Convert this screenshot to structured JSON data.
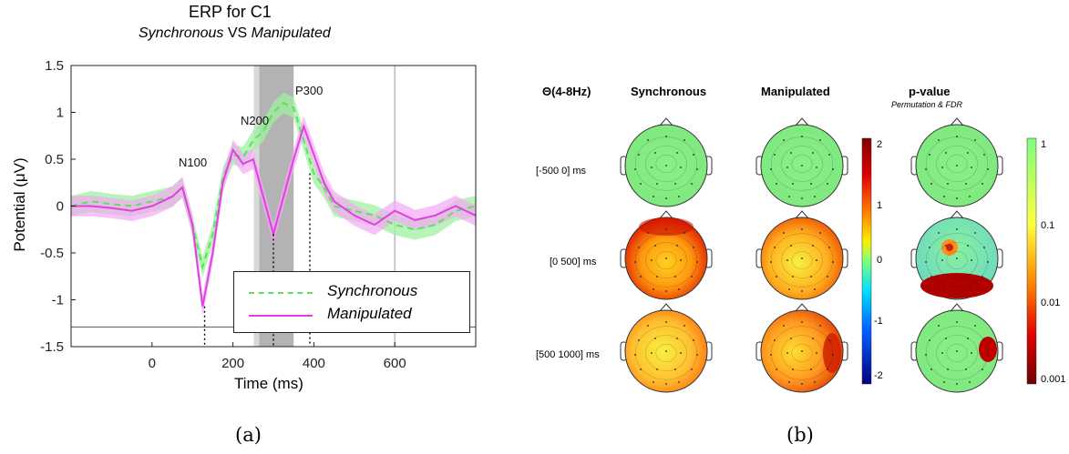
{
  "panel_a": {
    "title": "ERP for C1",
    "subtitle_part1": "Synchronous",
    "subtitle_part2": " VS ",
    "subtitle_part3": "Manipulated",
    "ylabel": "Potential (μV)",
    "xlabel": "Time (ms)",
    "caption": "(a)",
    "peaks": [
      "N100",
      "N200",
      "P300"
    ]
  },
  "panel_b": {
    "caption": "(b)",
    "header_band": "Θ(4-8Hz)",
    "col_headers": [
      "Synchronous",
      "Manipulated",
      "p-value"
    ],
    "pvalue_sub": "Permutation & FDR",
    "row_labels": [
      "[-500 0] ms",
      "[0 500] ms",
      "[500 1000] ms"
    ],
    "colorbar_power_ticks": [
      "2",
      "1",
      "0",
      "-1",
      "-2"
    ],
    "colorbar_p_ticks": [
      "1",
      "0.1",
      "0.01",
      "0.001"
    ]
  },
  "chart_data": {
    "type": "line",
    "title": "ERP for C1",
    "xlabel": "Time (ms)",
    "ylabel": "Potential (μV)",
    "xlim": [
      -200,
      800
    ],
    "ylim": [
      -1.5,
      1.5
    ],
    "xticks": [
      0,
      200,
      400,
      600
    ],
    "yticks": [
      -1.5,
      -1,
      -0.5,
      0,
      0.5,
      1,
      1.5
    ],
    "legend_position": "bottom-right",
    "colors": {
      "synchronous": "#5ee05e",
      "manipulated": "#e23fe2",
      "band_sync": "#9ff09f",
      "band_manip": "#f4a8f4",
      "shade": "#9a9a9a"
    },
    "x": [
      -200,
      -150,
      -100,
      -50,
      0,
      50,
      75,
      100,
      125,
      150,
      175,
      200,
      225,
      250,
      275,
      300,
      325,
      350,
      375,
      400,
      425,
      450,
      500,
      550,
      600,
      650,
      700,
      750,
      800
    ],
    "series": [
      {
        "name": "Synchronous",
        "values": [
          0.0,
          0.05,
          0.02,
          0.0,
          0.05,
          0.1,
          0.2,
          -0.2,
          -0.65,
          -0.3,
          0.3,
          0.55,
          0.52,
          0.7,
          0.8,
          1.0,
          1.1,
          1.05,
          0.7,
          0.35,
          0.2,
          0.0,
          -0.05,
          -0.1,
          -0.2,
          -0.25,
          -0.2,
          -0.05,
          0.0
        ]
      },
      {
        "name": "Manipulated",
        "values": [
          0.0,
          0.0,
          -0.02,
          -0.05,
          0.0,
          0.1,
          0.2,
          -0.2,
          -1.07,
          -0.5,
          0.25,
          0.6,
          0.45,
          0.5,
          0.1,
          -0.3,
          0.1,
          0.5,
          0.85,
          0.55,
          0.25,
          0.05,
          -0.1,
          -0.2,
          -0.05,
          -0.15,
          -0.1,
          0.0,
          -0.1
        ]
      }
    ],
    "annotations": [
      {
        "label": "N100",
        "x": 130
      },
      {
        "label": "N200",
        "x": 300
      },
      {
        "label": "P300",
        "x": 390
      }
    ],
    "vertical_lines": [
      600
    ],
    "shaded_region": [
      265,
      350
    ]
  }
}
